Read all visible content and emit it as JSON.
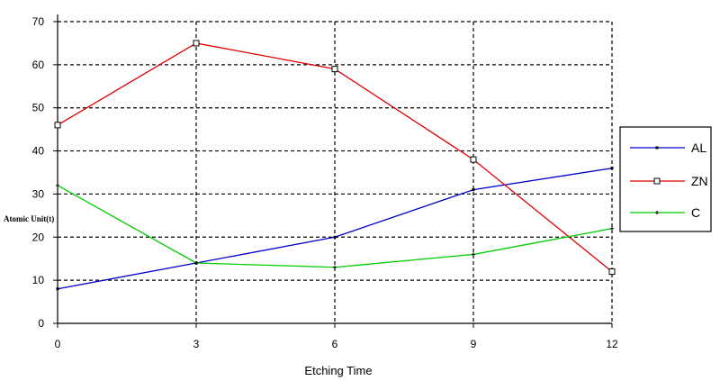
{
  "chart_data": {
    "type": "line",
    "title": "",
    "xlabel": "Etching Time",
    "ylabel": "Atomic Unit(t)",
    "x": [
      0,
      3,
      6,
      9,
      12
    ],
    "xlim": [
      0,
      12
    ],
    "ylim": [
      0,
      70
    ],
    "x_ticks": [
      "0",
      "3",
      "6",
      "9",
      "12"
    ],
    "y_ticks": [
      "0",
      "10",
      "20",
      "30",
      "40",
      "50",
      "60",
      "70"
    ],
    "grid": true,
    "legend_position": "right",
    "series": [
      {
        "name": "AL",
        "values": [
          8,
          14,
          20,
          31,
          36
        ],
        "color": "#0000cc",
        "marker": "dot"
      },
      {
        "name": "ZN",
        "values": [
          46,
          65,
          59,
          38,
          12
        ],
        "color": "#dd0000",
        "marker": "square"
      },
      {
        "name": "C",
        "values": [
          32,
          14,
          13,
          16,
          22
        ],
        "color": "#00cc00",
        "marker": "plus"
      }
    ]
  }
}
